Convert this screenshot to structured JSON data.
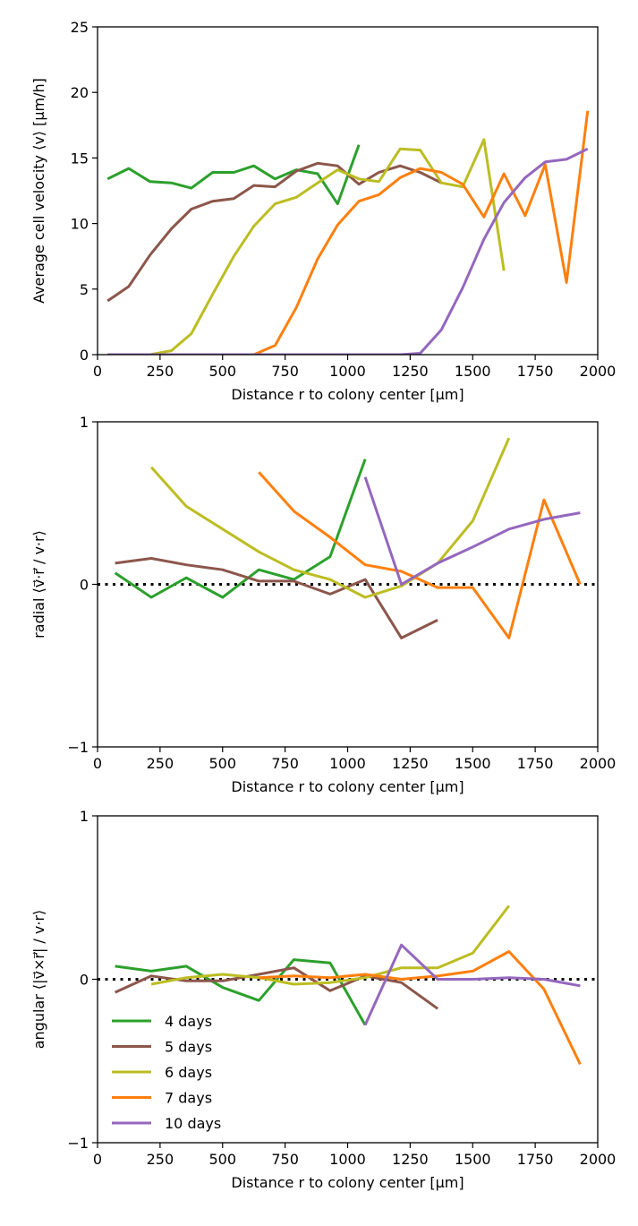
{
  "chart_data": [
    {
      "type": "line",
      "xlabel": "Distance r to colony center [μm]",
      "ylabel": "Average cell velocity ⟨v⟩ [μm/h]",
      "xlim": [
        0,
        2000
      ],
      "ylim": [
        0,
        25
      ],
      "xticks": [
        "0",
        "250",
        "500",
        "750",
        "1000",
        "1250",
        "1500",
        "1750",
        "2000"
      ],
      "yticks": [
        "0",
        "5",
        "10",
        "15",
        "20",
        "25"
      ],
      "series": [
        {
          "name": "4 days",
          "color": "#2ca02c",
          "x": [
            40,
            125,
            210,
            295,
            375,
            460,
            545,
            625,
            710,
            795,
            880,
            960,
            1045
          ],
          "y": [
            13.4,
            14.2,
            13.2,
            13.1,
            12.7,
            13.9,
            13.9,
            14.4,
            13.4,
            14.1,
            13.8,
            11.5,
            16.0
          ]
        },
        {
          "name": "5 days",
          "color": "#8c564b",
          "x": [
            40,
            125,
            210,
            295,
            375,
            460,
            545,
            625,
            710,
            795,
            880,
            960,
            1045,
            1125,
            1210,
            1290,
            1375
          ],
          "y": [
            4.1,
            5.2,
            7.6,
            9.6,
            11.1,
            11.7,
            11.9,
            12.9,
            12.8,
            14.0,
            14.6,
            14.4,
            13.0,
            13.9,
            14.4,
            13.9,
            13.1
          ]
        },
        {
          "name": "6 days",
          "color": "#bcbd22",
          "x": [
            40,
            125,
            210,
            295,
            375,
            460,
            545,
            625,
            710,
            795,
            880,
            960,
            1045,
            1125,
            1210,
            1290,
            1375,
            1460,
            1545,
            1625
          ],
          "y": [
            0,
            0,
            0,
            0.3,
            1.6,
            4.6,
            7.5,
            9.8,
            11.5,
            12.0,
            13.1,
            14.1,
            13.4,
            13.2,
            15.7,
            15.6,
            13.1,
            12.8,
            16.4,
            6.4
          ]
        },
        {
          "name": "7 days",
          "color": "#ff7f0e",
          "x": [
            40,
            125,
            210,
            295,
            375,
            460,
            545,
            625,
            710,
            795,
            880,
            960,
            1045,
            1125,
            1210,
            1290,
            1375,
            1460,
            1545,
            1625,
            1710,
            1790,
            1875,
            1960
          ],
          "y": [
            0,
            0,
            0,
            0,
            0,
            0,
            0,
            0,
            0.7,
            3.6,
            7.3,
            9.9,
            11.7,
            12.2,
            13.5,
            14.2,
            13.9,
            13.0,
            10.5,
            13.8,
            10.6,
            14.5,
            5.5,
            18.6
          ]
        },
        {
          "name": "10 days",
          "color": "#9467bd",
          "x": [
            40,
            125,
            210,
            295,
            375,
            460,
            545,
            625,
            710,
            795,
            880,
            960,
            1045,
            1125,
            1210,
            1290,
            1375,
            1460,
            1545,
            1625,
            1710,
            1790,
            1875,
            1960
          ],
          "y": [
            0,
            0,
            0,
            0,
            0,
            0,
            0,
            0,
            0,
            0,
            0,
            0,
            0,
            0,
            0,
            0.1,
            1.9,
            5.1,
            8.8,
            11.6,
            13.5,
            14.7,
            14.9,
            15.7
          ]
        }
      ]
    },
    {
      "type": "line",
      "xlabel": "Distance r to colony center [μm]",
      "ylabel": "radial ⟨v⃗·r⃗ / v·r⟩",
      "xlim": [
        0,
        2000
      ],
      "ylim": [
        -1,
        1
      ],
      "xticks": [
        "0",
        "250",
        "500",
        "750",
        "1000",
        "1250",
        "1500",
        "1750",
        "2000"
      ],
      "yticks": [
        "−1",
        "0",
        "1"
      ],
      "reference_line": 0,
      "series": [
        {
          "name": "4 days",
          "color": "#2ca02c",
          "x": [
            70,
            215,
            355,
            500,
            645,
            785,
            930,
            1070
          ],
          "y": [
            0.07,
            -0.08,
            0.04,
            -0.08,
            0.09,
            0.03,
            0.17,
            0.77
          ]
        },
        {
          "name": "5 days",
          "color": "#8c564b",
          "x": [
            70,
            215,
            355,
            500,
            645,
            785,
            930,
            1070,
            1215,
            1360
          ],
          "y": [
            0.13,
            0.16,
            0.12,
            0.09,
            0.02,
            0.02,
            -0.06,
            0.03,
            -0.33,
            -0.22
          ]
        },
        {
          "name": "6 days",
          "color": "#bcbd22",
          "x": [
            215,
            355,
            500,
            645,
            785,
            930,
            1070,
            1215,
            1360,
            1500,
            1645
          ],
          "y": [
            0.72,
            0.48,
            0.34,
            0.2,
            0.09,
            0.03,
            -0.08,
            -0.01,
            0.13,
            0.39,
            0.9
          ]
        },
        {
          "name": "7 days",
          "color": "#ff7f0e",
          "x": [
            645,
            785,
            930,
            1070,
            1215,
            1360,
            1500,
            1645,
            1785,
            1930
          ],
          "y": [
            0.69,
            0.45,
            0.29,
            0.12,
            0.08,
            -0.02,
            -0.02,
            -0.33,
            0.52,
            0.0
          ]
        },
        {
          "name": "10 days",
          "color": "#9467bd",
          "x": [
            1070,
            1215,
            1360,
            1500,
            1645,
            1785,
            1930
          ],
          "y": [
            0.66,
            0.0,
            0.13,
            0.23,
            0.34,
            0.4,
            0.44
          ]
        }
      ]
    },
    {
      "type": "line",
      "xlabel": "Distance r to colony center [μm]",
      "ylabel": "angular ⟨|v⃗×r⃗| / v·r⟩",
      "xlim": [
        0,
        2000
      ],
      "ylim": [
        -1,
        1
      ],
      "xticks": [
        "0",
        "250",
        "500",
        "750",
        "1000",
        "1250",
        "1500",
        "1750",
        "2000"
      ],
      "yticks": [
        "−1",
        "0",
        "1"
      ],
      "reference_line": 0,
      "legend": "lower-left",
      "series": [
        {
          "name": "4 days",
          "color": "#2ca02c",
          "x": [
            70,
            215,
            355,
            500,
            645,
            785,
            930,
            1070
          ],
          "y": [
            0.08,
            0.05,
            0.08,
            -0.05,
            -0.13,
            0.12,
            0.1,
            -0.28
          ]
        },
        {
          "name": "5 days",
          "color": "#8c564b",
          "x": [
            70,
            215,
            355,
            500,
            645,
            785,
            930,
            1070,
            1215,
            1360
          ],
          "y": [
            -0.08,
            0.02,
            -0.01,
            -0.01,
            0.03,
            0.07,
            -0.07,
            0.02,
            -0.02,
            -0.18
          ]
        },
        {
          "name": "6 days",
          "color": "#bcbd22",
          "x": [
            215,
            355,
            500,
            645,
            785,
            930,
            1070,
            1215,
            1360,
            1500,
            1645
          ],
          "y": [
            -0.03,
            0.01,
            0.03,
            0.01,
            -0.03,
            -0.02,
            0.01,
            0.07,
            0.07,
            0.16,
            0.45
          ]
        },
        {
          "name": "7 days",
          "color": "#ff7f0e",
          "x": [
            645,
            785,
            930,
            1070,
            1215,
            1360,
            1500,
            1645,
            1785,
            1930
          ],
          "y": [
            0.01,
            0.02,
            0.01,
            0.03,
            0.0,
            0.02,
            0.05,
            0.17,
            -0.06,
            -0.52
          ]
        },
        {
          "name": "10 days",
          "color": "#9467bd",
          "x": [
            1070,
            1215,
            1360,
            1500,
            1645,
            1785,
            1930
          ],
          "y": [
            -0.28,
            0.21,
            0.0,
            0.0,
            0.01,
            0.0,
            -0.04
          ]
        }
      ]
    }
  ]
}
